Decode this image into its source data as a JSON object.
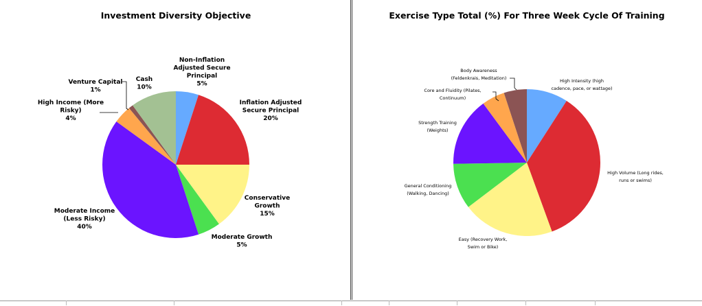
{
  "chart_data": [
    {
      "type": "pie",
      "title": "Investment Diversity Objective",
      "categories": [
        "Non-Inflation Adjusted Secure Principal",
        "Inflation Adjusted Secure Principal",
        "Conservative Growth",
        "Moderate Growth",
        "Moderate Income (Less Risky)",
        "High Income (More Risky)",
        "Venture Capital",
        "Cash"
      ],
      "values": [
        5,
        20,
        15,
        5,
        40,
        4,
        1,
        10
      ],
      "labels": [
        [
          "Non-Inflation",
          "Adjusted Secure",
          "Principal",
          "5%"
        ],
        [
          "Inflation Adjusted",
          "Secure Principal",
          "20%"
        ],
        [
          "Conservative",
          "Growth",
          "15%"
        ],
        [
          "Moderate Growth",
          "5%"
        ],
        [
          "Moderate Income",
          "(Less Risky)",
          "40%"
        ],
        [
          "High Income (More",
          "Risky)",
          "4%"
        ],
        [
          "Venture Capital",
          "1%"
        ],
        [
          "Cash",
          "10%"
        ]
      ],
      "colors": [
        "#66aaff",
        "#dd2b33",
        "#fff388",
        "#4be050",
        "#6b14ff",
        "#ffa64d",
        "#8b5454",
        "#a3c193"
      ],
      "legend": "none"
    },
    {
      "type": "pie",
      "title": "Exercise Type Total (%) For Three Week Cycle Of Training",
      "categories": [
        "High Intensity (high cadence, pace, or wattage)",
        "High Volume (Long rides, runs or swims)",
        "Easy (Recovery Work, Swim or Bike)",
        "General Conditioning (Walking, Dancing)",
        "Strength Training (Weights)",
        "Core and Fluidity (Pilates, Continuum)",
        "Body Awareness (Feldenkrais, Meditation)"
      ],
      "values": [
        9,
        35,
        20,
        10,
        15,
        5,
        5
      ],
      "labels": [
        [
          "High Intensity (high",
          "cadence, pace, or wattage)"
        ],
        [
          "High Volume (Long rides,",
          "runs or swims)"
        ],
        [
          "Easy (Recovery Work,",
          "Swim or Bike)"
        ],
        [
          "General Conditioning",
          "(Walking, Dancing)"
        ],
        [
          "Strength Training",
          "(Weights)"
        ],
        [
          "Core and Fluidity (Pilates,",
          "Continuum)"
        ],
        [
          "Body Awareness",
          "(Feldenkrais, Meditation)"
        ]
      ],
      "colors": [
        "#66aaff",
        "#dd2b33",
        "#fff388",
        "#4be050",
        "#6b14ff",
        "#ffa64d",
        "#8b5454"
      ],
      "legend": "none"
    }
  ]
}
